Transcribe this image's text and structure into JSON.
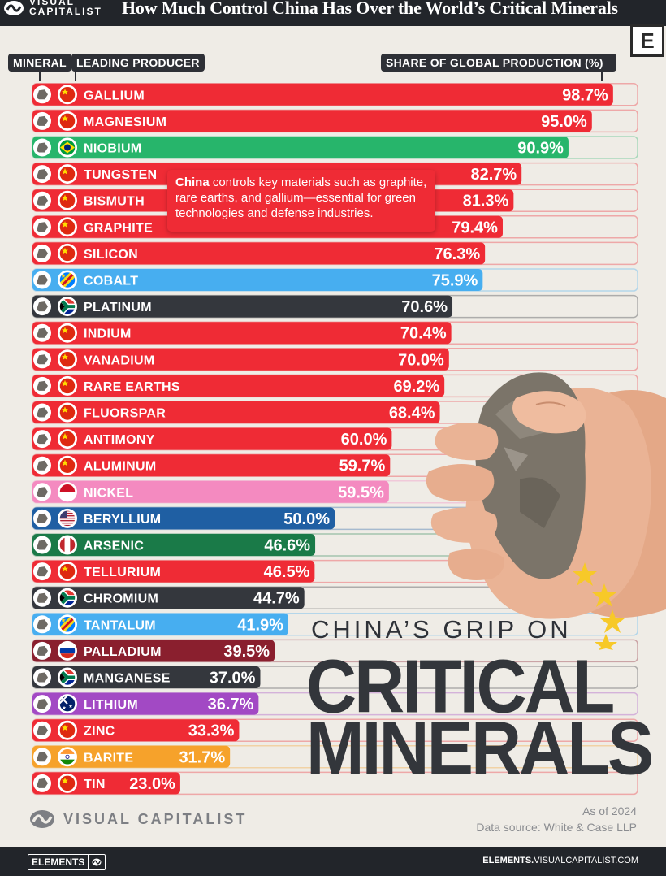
{
  "header": {
    "logo_text_1": "VISUAL",
    "logo_text_2": "CAPITALIST",
    "title": "How Much Control China Has Over the World’s Critical Minerals",
    "badge": "E"
  },
  "columns": {
    "mineral": "MINERAL",
    "producer": "LEADING PRODUCER",
    "share": "SHARE OF GLOBAL PRODUCTION (%)"
  },
  "note": {
    "bold": "China",
    "text": " controls key materials such as graphite, rare earths, and gallium—essential for green technologies and defense industries."
  },
  "headline": {
    "line1": "CHINA’S GRIP ON",
    "line2": "CRITICAL",
    "line3": "MINERALS"
  },
  "colors": {
    "china": "#ef2b35",
    "brazil": "#27b56b",
    "drc": "#47aef0",
    "south_africa": "#34373d",
    "indonesia": "#f48ac0",
    "usa": "#1f5fa3",
    "morocco": "#1a7a48",
    "russia": "#8a1f2e",
    "australia": "#a249c4",
    "india": "#f6a22b"
  },
  "chart_data": {
    "type": "bar",
    "orientation": "horizontal",
    "value_suffix": "%",
    "xlim": [
      0,
      100
    ],
    "categories": [
      "GALLIUM",
      "MAGNESIUM",
      "NIOBIUM",
      "TUNGSTEN",
      "BISMUTH",
      "GRAPHITE",
      "SILICON",
      "COBALT",
      "PLATINUM",
      "INDIUM",
      "VANADIUM",
      "RARE EARTHS",
      "FLUORSPAR",
      "ANTIMONY",
      "ALUMINUM",
      "NICKEL",
      "BERYLLIUM",
      "ARSENIC",
      "TELLURIUM",
      "CHROMIUM",
      "TANTALUM",
      "PALLADIUM",
      "MANGANESE",
      "LITHIUM",
      "ZINC",
      "BARITE",
      "TIN"
    ],
    "values": [
      98.7,
      95.0,
      90.9,
      82.7,
      81.3,
      79.4,
      76.3,
      75.9,
      70.6,
      70.4,
      70.0,
      69.2,
      68.4,
      60.0,
      59.7,
      59.5,
      50.0,
      46.6,
      46.5,
      44.7,
      41.9,
      39.5,
      37.0,
      36.7,
      33.3,
      31.7,
      23.0
    ],
    "value_labels": [
      "98.7%",
      "95.0%",
      "90.9%",
      "82.7%",
      "81.3%",
      "79.4%",
      "76.3%",
      "75.9%",
      "70.6%",
      "70.4%",
      "70.0%",
      "69.2%",
      "68.4%",
      "60.0%",
      "59.7%",
      "59.5%",
      "50.0%",
      "46.6%",
      "46.5%",
      "44.7%",
      "41.9%",
      "39.5%",
      "37.0%",
      "36.7%",
      "33.3%",
      "31.7%",
      "23.0%"
    ],
    "producer_flags": [
      "china",
      "china",
      "brazil",
      "china",
      "china",
      "china",
      "china",
      "drc",
      "south_africa",
      "china",
      "china",
      "china",
      "china",
      "china",
      "china",
      "indonesia",
      "usa",
      "morocco",
      "china",
      "south_africa",
      "drc",
      "russia",
      "south_africa",
      "australia",
      "china",
      "india",
      "china"
    ]
  },
  "footer": {
    "logo": "VISUAL CAPITALIST",
    "as_of": "As of 2024",
    "source": "Data source: White & Case LLP",
    "elements": "ELEMENTS",
    "site_bold": "ELEMENTS.",
    "site_rest": "VISUALCAPITALIST.COM"
  }
}
